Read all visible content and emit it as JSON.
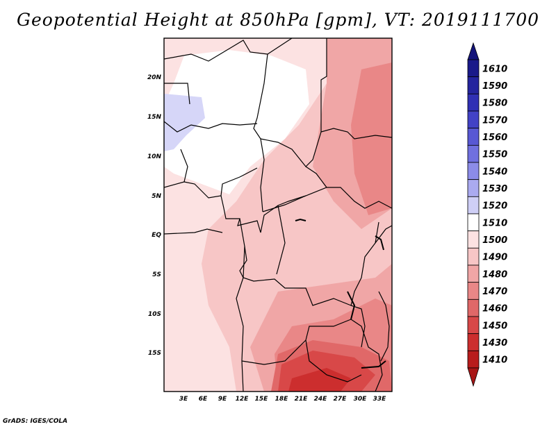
{
  "title": "Geopotential Height at 850hPa [gpm], VT: 2019111700",
  "footer": "GrADS: IGES/COLA",
  "map": {
    "lat_labels": [
      "20N",
      "15N",
      "10N",
      "5N",
      "EQ",
      "5S",
      "10S",
      "15S"
    ],
    "lon_labels": [
      "3E",
      "6E",
      "9E",
      "12E",
      "15E",
      "18E",
      "21E",
      "24E",
      "27E",
      "30E",
      "33E"
    ]
  },
  "colorbar": {
    "levels": [
      {
        "label": "1610",
        "color": "#1a1a8a"
      },
      {
        "label": "1590",
        "color": "#24249e"
      },
      {
        "label": "1580",
        "color": "#3030b4"
      },
      {
        "label": "1570",
        "color": "#4242c6"
      },
      {
        "label": "1560",
        "color": "#5858d4"
      },
      {
        "label": "1550",
        "color": "#7070df"
      },
      {
        "label": "1540",
        "color": "#8c8ce8"
      },
      {
        "label": "1530",
        "color": "#aaaaf0"
      },
      {
        "label": "1520",
        "color": "#cfcff6"
      },
      {
        "label": "1510",
        "color": "#ffffff"
      },
      {
        "label": "1500",
        "color": "#fce2e2"
      },
      {
        "label": "1490",
        "color": "#f7c6c6"
      },
      {
        "label": "1480",
        "color": "#f0a6a6"
      },
      {
        "label": "1470",
        "color": "#e98787"
      },
      {
        "label": "1460",
        "color": "#e06868"
      },
      {
        "label": "1450",
        "color": "#d84848"
      },
      {
        "label": "1430",
        "color": "#cc2e2e"
      },
      {
        "label": "1410",
        "color": "#b81c1c"
      }
    ],
    "top_arrow_color": "#14147a",
    "bottom_arrow_color": "#a81616"
  }
}
